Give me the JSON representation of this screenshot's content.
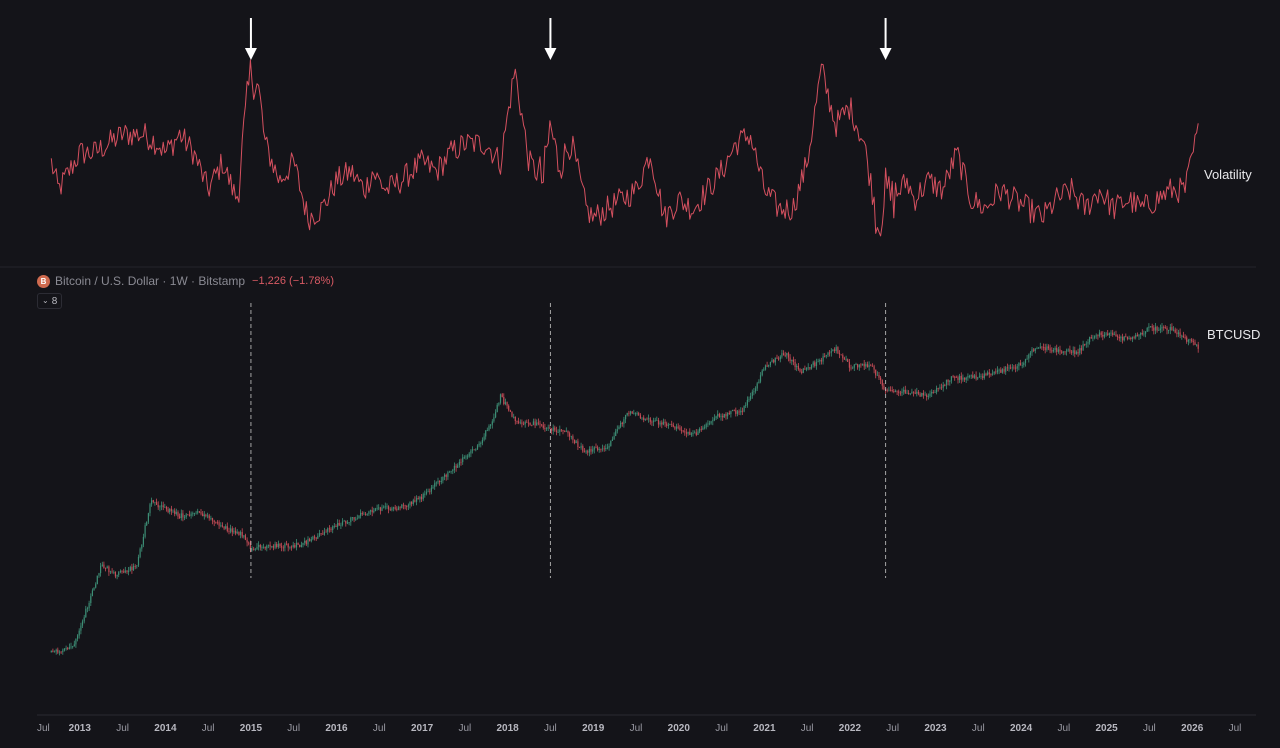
{
  "legend": {
    "symbol": "B",
    "title": "Bitcoin / U.S. Dollar · 1W · Bitstamp",
    "change": "−1,226 (−1.78%)",
    "collapse_count": "8"
  },
  "colors": {
    "background": "#141419",
    "volatility_line": "#d4505f",
    "candle_up": "#3c8e75",
    "candle_down": "#c64b56",
    "arrow": "#ffffff",
    "marker_line": "#c8c8c8"
  },
  "chart_data": [
    {
      "type": "line",
      "panel": "volatility",
      "series": [
        {
          "name": "Volatility",
          "color": "#d4505f"
        }
      ],
      "x": [
        "2012-09",
        "2012-10",
        "2013-01",
        "2013-03",
        "2013-05",
        "2013-07",
        "2013-10",
        "2013-12",
        "2014-01",
        "2014-03",
        "2014-05",
        "2014-07",
        "2014-09",
        "2014-11",
        "2014-12",
        "2015-01",
        "2015-02",
        "2015-03",
        "2015-05",
        "2015-07",
        "2015-09",
        "2015-11",
        "2016-01",
        "2016-03",
        "2016-05",
        "2016-06",
        "2016-08",
        "2016-10",
        "2017-01",
        "2017-03",
        "2017-05",
        "2017-07",
        "2017-10",
        "2017-12",
        "2018-02",
        "2018-04",
        "2018-06",
        "2018-07",
        "2018-08",
        "2018-10",
        "2018-12",
        "2019-01",
        "2019-03",
        "2019-05",
        "2019-07",
        "2019-09",
        "2019-11",
        "2020-01",
        "2020-03",
        "2020-05",
        "2020-07",
        "2020-09",
        "2020-11",
        "2021-01",
        "2021-03",
        "2021-05",
        "2021-07",
        "2021-09",
        "2021-11",
        "2022-01",
        "2022-03",
        "2022-05",
        "2022-06",
        "2022-07",
        "2022-09",
        "2022-10",
        "2022-12",
        "2023-02",
        "2023-04",
        "2023-06",
        "2023-08",
        "2023-10",
        "2023-12",
        "2024-02",
        "2024-04",
        "2024-06",
        "2024-08",
        "2024-10",
        "2024-12",
        "2025-02",
        "2025-04",
        "2025-06",
        "2025-08",
        "2025-10",
        "2025-12",
        "2026-02"
      ],
      "y": [
        0.45,
        0.3,
        0.5,
        0.5,
        0.55,
        0.6,
        0.6,
        0.55,
        0.5,
        0.6,
        0.5,
        0.3,
        0.45,
        0.25,
        0.6,
        0.95,
        0.85,
        0.55,
        0.35,
        0.45,
        0.15,
        0.2,
        0.35,
        0.4,
        0.3,
        0.4,
        0.3,
        0.35,
        0.45,
        0.4,
        0.5,
        0.55,
        0.55,
        0.45,
        0.95,
        0.45,
        0.35,
        0.65,
        0.45,
        0.55,
        0.2,
        0.15,
        0.2,
        0.25,
        0.3,
        0.5,
        0.15,
        0.25,
        0.2,
        0.3,
        0.4,
        0.55,
        0.6,
        0.3,
        0.2,
        0.2,
        0.45,
        0.95,
        0.65,
        0.75,
        0.55,
        0.1,
        0.3,
        0.25,
        0.35,
        0.25,
        0.35,
        0.3,
        0.5,
        0.25,
        0.2,
        0.3,
        0.25,
        0.2,
        0.15,
        0.25,
        0.3,
        0.2,
        0.3,
        0.2,
        0.25,
        0.2,
        0.25,
        0.3,
        0.3,
        0.65
      ],
      "ylim": [
        0,
        1
      ],
      "highlighted_peaks": [
        "2015-01",
        "2018-07",
        "2022-06"
      ],
      "grid": false
    },
    {
      "type": "candlestick",
      "panel": "price",
      "series": [
        {
          "name": "BTCUSD"
        }
      ],
      "scale": "log",
      "x": [
        "2012-09",
        "2012-12",
        "2013-03",
        "2013-04",
        "2013-06",
        "2013-09",
        "2013-11",
        "2013-12",
        "2014-03",
        "2014-06",
        "2014-09",
        "2014-12",
        "2015-01",
        "2015-04",
        "2015-08",
        "2015-11",
        "2016-01",
        "2016-06",
        "2016-10",
        "2017-01",
        "2017-05",
        "2017-09",
        "2017-11",
        "2017-12",
        "2018-02",
        "2018-05",
        "2018-07",
        "2018-09",
        "2018-11",
        "2018-12",
        "2019-03",
        "2019-06",
        "2019-09",
        "2019-12",
        "2020-03",
        "2020-06",
        "2020-10",
        "2020-12",
        "2021-01",
        "2021-04",
        "2021-06",
        "2021-09",
        "2021-11",
        "2022-01",
        "2022-04",
        "2022-06",
        "2022-09",
        "2022-12",
        "2023-03",
        "2023-07",
        "2023-10",
        "2024-01",
        "2024-03",
        "2024-07",
        "2024-09",
        "2024-11",
        "2025-01",
        "2025-04",
        "2025-07",
        "2025-10",
        "2025-12",
        "2026-02"
      ],
      "y": [
        11,
        13,
        70,
        140,
        100,
        130,
        900,
        750,
        550,
        600,
        400,
        320,
        220,
        230,
        240,
        330,
        420,
        650,
        700,
        950,
        2000,
        4200,
        9000,
        17000,
        8500,
        7600,
        6500,
        6400,
        4000,
        3500,
        4000,
        11000,
        8500,
        7200,
        5500,
        9300,
        11500,
        24000,
        40000,
        58000,
        34000,
        48000,
        66000,
        40000,
        40000,
        20000,
        19500,
        16500,
        28000,
        29500,
        34000,
        42000,
        70000,
        62000,
        60000,
        95000,
        102000,
        85000,
        118000,
        120000,
        88000,
        68000
      ],
      "ylim": [
        5,
        200000
      ],
      "grid": false
    }
  ],
  "x_axis": {
    "ticks": [
      {
        "label": "Jul",
        "year": false,
        "x": "2012-07"
      },
      {
        "label": "2013",
        "year": true,
        "x": "2013-01"
      },
      {
        "label": "Jul",
        "year": false,
        "x": "2013-07"
      },
      {
        "label": "2014",
        "year": true,
        "x": "2014-01"
      },
      {
        "label": "Jul",
        "year": false,
        "x": "2014-07"
      },
      {
        "label": "2015",
        "year": true,
        "x": "2015-01"
      },
      {
        "label": "Jul",
        "year": false,
        "x": "2015-07"
      },
      {
        "label": "2016",
        "year": true,
        "x": "2016-01"
      },
      {
        "label": "Jul",
        "year": false,
        "x": "2016-07"
      },
      {
        "label": "2017",
        "year": true,
        "x": "2017-01"
      },
      {
        "label": "Jul",
        "year": false,
        "x": "2017-07"
      },
      {
        "label": "2018",
        "year": true,
        "x": "2018-01"
      },
      {
        "label": "Jul",
        "year": false,
        "x": "2018-07"
      },
      {
        "label": "2019",
        "year": true,
        "x": "2019-01"
      },
      {
        "label": "Jul",
        "year": false,
        "x": "2019-07"
      },
      {
        "label": "2020",
        "year": true,
        "x": "2020-01"
      },
      {
        "label": "Jul",
        "year": false,
        "x": "2020-07"
      },
      {
        "label": "2021",
        "year": true,
        "x": "2021-01"
      },
      {
        "label": "Jul",
        "year": false,
        "x": "2021-07"
      },
      {
        "label": "2022",
        "year": true,
        "x": "2022-01"
      },
      {
        "label": "Jul",
        "year": false,
        "x": "2022-07"
      },
      {
        "label": "2023",
        "year": true,
        "x": "2023-01"
      },
      {
        "label": "Jul",
        "year": false,
        "x": "2023-07"
      },
      {
        "label": "2024",
        "year": true,
        "x": "2024-01"
      },
      {
        "label": "Jul",
        "year": false,
        "x": "2024-07"
      },
      {
        "label": "2025",
        "year": true,
        "x": "2025-01"
      },
      {
        "label": "Jul",
        "year": false,
        "x": "2025-07"
      },
      {
        "label": "2026",
        "year": true,
        "x": "2026-01"
      },
      {
        "label": "Jul",
        "year": false,
        "x": "2026-07"
      }
    ]
  },
  "markers": [
    {
      "x": "2015-01"
    },
    {
      "x": "2018-07"
    },
    {
      "x": "2022-06"
    }
  ]
}
